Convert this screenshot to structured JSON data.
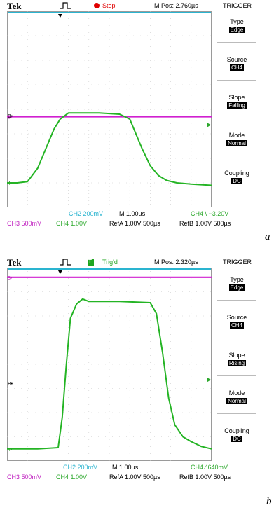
{
  "scopes": [
    {
      "panel_label": "a",
      "header": {
        "brand": "Tek",
        "status": "Stop",
        "mpos": "M Pos: 2.760µs",
        "menu_title": "TRIGGER"
      },
      "menu": [
        {
          "label": "Type",
          "value": "Edge"
        },
        {
          "label": "Source",
          "value": "CH4"
        },
        {
          "label": "Slope",
          "value": "Falling"
        },
        {
          "label": "Mode",
          "value": "Normal"
        },
        {
          "label": "Coupling",
          "value": "DC"
        }
      ],
      "footer": {
        "ch2": "CH2  200mV",
        "timebase": "M 1.00µs",
        "trig": "CH4 \\ −3.20V",
        "ch3": "CH3  500mV",
        "ch4": "CH4  1.00V",
        "refa": "RefA 1.00V 500µs",
        "refb": "RefB 1.00V 500µs"
      },
      "markers": {
        "ch3": "3•",
        "ch4": "4•",
        "refb": "B•"
      },
      "chart_data": {
        "type": "line",
        "x_divisions": 10,
        "y_divisions": 8,
        "series": [
          {
            "color": "#d020d0",
            "x": [
              0,
              10
            ],
            "y": [
              3.7,
              3.7
            ]
          },
          {
            "color": "#24b424",
            "x": [
              0,
              0.5,
              1.0,
              1.5,
              2.0,
              2.3,
              2.6,
              3.0,
              3.5,
              4.5,
              5.5,
              6.0,
              6.2,
              6.6,
              7.0,
              7.4,
              7.8,
              8.3,
              9.0,
              10
            ],
            "y": [
              1.0,
              1.0,
              1.05,
              1.6,
              2.6,
              3.2,
              3.6,
              3.85,
              3.85,
              3.85,
              3.8,
              3.6,
              3.2,
              2.4,
              1.7,
              1.3,
              1.1,
              1.0,
              0.95,
              0.9
            ]
          }
        ]
      }
    },
    {
      "panel_label": "b",
      "header": {
        "brand": "Tek",
        "status": "Trig'd",
        "mpos": "M Pos: 2.320µs",
        "menu_title": "TRIGGER"
      },
      "menu": [
        {
          "label": "Type",
          "value": "Edge"
        },
        {
          "label": "Source",
          "value": "CH4"
        },
        {
          "label": "Slope",
          "value": "Rising"
        },
        {
          "label": "Mode",
          "value": "Normal"
        },
        {
          "label": "Coupling",
          "value": "DC"
        }
      ],
      "footer": {
        "ch2": "CH2  200mV",
        "timebase": "M 1.00µs",
        "trig": "CH4 ∕ 640mV",
        "ch3": "CH3  500mV",
        "ch4": "CH4  1.00V",
        "refa": "RefA 1.00V 500µs",
        "refb": "RefB 1.00V 500µs"
      },
      "markers": {
        "ch3": "3•",
        "ch4": "4•",
        "refb": "B•"
      },
      "chart_data": {
        "type": "line",
        "x_divisions": 10,
        "y_divisions": 8,
        "series": [
          {
            "color": "#d020d0",
            "x": [
              0,
              10
            ],
            "y": [
              7.6,
              7.6
            ]
          },
          {
            "color": "#24b424",
            "x": [
              0,
              1.5,
              2.5,
              2.7,
              2.9,
              3.1,
              3.4,
              3.7,
              4.0,
              4.5,
              5.5,
              7.0,
              7.3,
              7.6,
              7.9,
              8.2,
              8.6,
              9.0,
              9.5,
              10
            ],
            "y": [
              0.5,
              0.5,
              0.55,
              1.8,
              4.0,
              5.9,
              6.5,
              6.7,
              6.6,
              6.6,
              6.6,
              6.55,
              6.1,
              4.5,
              2.6,
              1.5,
              1.0,
              0.8,
              0.6,
              0.5
            ]
          }
        ]
      }
    }
  ]
}
